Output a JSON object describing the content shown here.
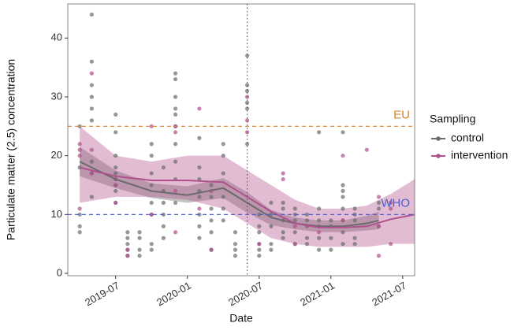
{
  "chart_data": {
    "type": "scatter",
    "x_label": "Date",
    "y_label": "Particulate matter (2.5) concentration",
    "legend_title": "Sampling",
    "xlim": [
      "2019-03",
      "2021-08"
    ],
    "xticks": [
      "2019-07",
      "2020-01",
      "2020-07",
      "2021-01",
      "2021-07"
    ],
    "ylim": [
      -0.4,
      45.8
    ],
    "yticks": [
      0,
      10,
      20,
      30,
      40
    ],
    "vline": "2020-06",
    "hlines": [
      {
        "value": 25,
        "label": "EU",
        "color": "#d9822b"
      },
      {
        "value": 10,
        "label": "WHO",
        "color": "#4f5fc8"
      }
    ],
    "series": [
      {
        "name": "control",
        "color": "#6b6b6b",
        "x": [
          "2019-04",
          "2019-04",
          "2019-04",
          "2019-04",
          "2019-04",
          "2019-05",
          "2019-05",
          "2019-05",
          "2019-05",
          "2019-05",
          "2019-05",
          "2019-05",
          "2019-05",
          "2019-05",
          "2019-07",
          "2019-07",
          "2019-07",
          "2019-07",
          "2019-07",
          "2019-07",
          "2019-07",
          "2019-07",
          "2019-07",
          "2019-08",
          "2019-08",
          "2019-08",
          "2019-08",
          "2019-08",
          "2019-09",
          "2019-09",
          "2019-09",
          "2019-09",
          "2019-10",
          "2019-10",
          "2019-10",
          "2019-10",
          "2019-10",
          "2019-10",
          "2019-10",
          "2019-10",
          "2019-11",
          "2019-11",
          "2019-11",
          "2019-11",
          "2019-11",
          "2019-11",
          "2019-12",
          "2019-12",
          "2019-12",
          "2019-12",
          "2019-12",
          "2019-12",
          "2019-12",
          "2019-12",
          "2019-12",
          "2019-12",
          "2020-02",
          "2020-02",
          "2020-02",
          "2020-02",
          "2020-02",
          "2020-02",
          "2020-02",
          "2020-02",
          "2020-03",
          "2020-03",
          "2020-03",
          "2020-03",
          "2020-03",
          "2020-03",
          "2020-04",
          "2020-04",
          "2020-04",
          "2020-04",
          "2020-04",
          "2020-04",
          "2020-05",
          "2020-05",
          "2020-05",
          "2020-05",
          "2020-06",
          "2020-06",
          "2020-06",
          "2020-06",
          "2020-06",
          "2020-06",
          "2020-07",
          "2020-07",
          "2020-07",
          "2020-07",
          "2020-07",
          "2020-07",
          "2020-08",
          "2020-08",
          "2020-08",
          "2020-08",
          "2020-08",
          "2020-09",
          "2020-09",
          "2020-09",
          "2020-09",
          "2020-09",
          "2020-10",
          "2020-10",
          "2020-10",
          "2020-10",
          "2020-10",
          "2020-11",
          "2020-11",
          "2020-11",
          "2020-11",
          "2020-11",
          "2020-12",
          "2020-12",
          "2020-12",
          "2020-12",
          "2020-12",
          "2020-12",
          "2021-01",
          "2021-01",
          "2021-01",
          "2021-01",
          "2021-02",
          "2021-02",
          "2021-02",
          "2021-02",
          "2021-02",
          "2021-02",
          "2021-02",
          "2021-02",
          "2021-03",
          "2021-03",
          "2021-03",
          "2021-03",
          "2021-03",
          "2021-05",
          "2021-05",
          "2021-05"
        ],
        "values": [
          25,
          18,
          10,
          8,
          7,
          44,
          36,
          32,
          30,
          28,
          26,
          19,
          17,
          13,
          27,
          24,
          20,
          18,
          17,
          16,
          15,
          14,
          12,
          7,
          6,
          5,
          4,
          3,
          7,
          6,
          4,
          3,
          22,
          20,
          17,
          15,
          12,
          10,
          5,
          4,
          18,
          14,
          12,
          10,
          8,
          6,
          34,
          33,
          30,
          28,
          27,
          25,
          22,
          19,
          16,
          12,
          23,
          18,
          16,
          14,
          13,
          10,
          8,
          6,
          15,
          13,
          11,
          9,
          7,
          4,
          22,
          20,
          17,
          13,
          11,
          9,
          7,
          5,
          4,
          3,
          37,
          32,
          31,
          29,
          28,
          22,
          10,
          8,
          7,
          5,
          4,
          3,
          12,
          10,
          8,
          5,
          4,
          12,
          11,
          9,
          7,
          6,
          11,
          10,
          9,
          7,
          5,
          10,
          9,
          8,
          6,
          5,
          24,
          11,
          9,
          8,
          6,
          4,
          9,
          8,
          6,
          4,
          24,
          15,
          14,
          13,
          11,
          9,
          7,
          5,
          11,
          10,
          9,
          6,
          5,
          12,
          11,
          8
        ],
        "smooth": {
          "x": [
            "2019-04",
            "2019-07",
            "2019-10",
            "2020-01",
            "2020-04",
            "2020-06",
            "2020-08",
            "2020-10",
            "2020-12",
            "2021-02",
            "2021-04",
            "2021-05"
          ],
          "values": [
            19,
            16,
            14,
            13.3,
            14.5,
            12,
            9.5,
            8.5,
            8,
            8,
            8.5,
            9
          ],
          "lower": [
            16.5,
            14.5,
            12.8,
            12,
            12.8,
            10.3,
            8.2,
            7.5,
            7,
            7,
            7.3,
            7.5
          ],
          "upper": [
            21.5,
            17.5,
            15.3,
            14.8,
            16.2,
            13.8,
            10.8,
            9.5,
            9,
            9,
            9.8,
            10.5
          ]
        }
      },
      {
        "name": "intervention",
        "color": "#b0508c",
        "x": [
          "2019-04",
          "2019-04",
          "2019-04",
          "2019-04",
          "2019-05",
          "2019-05",
          "2019-05",
          "2019-07",
          "2019-07",
          "2019-07",
          "2019-08",
          "2019-08",
          "2019-10",
          "2019-10",
          "2019-12",
          "2019-12",
          "2019-12",
          "2019-12",
          "2020-02",
          "2020-02",
          "2020-03",
          "2020-03",
          "2020-06",
          "2020-06",
          "2020-06",
          "2020-07",
          "2020-09",
          "2020-09",
          "2020-10",
          "2020-10",
          "2020-12",
          "2021-02",
          "2021-02",
          "2021-04",
          "2021-05",
          "2021-05",
          "2021-05",
          "2021-06",
          "2021-06",
          "2021-06"
        ],
        "values": [
          22,
          21,
          20,
          11,
          34,
          21,
          17,
          16,
          15,
          12,
          4,
          3,
          25,
          10,
          25,
          24,
          14,
          7,
          28,
          11,
          14,
          4,
          30,
          26,
          24,
          5,
          17,
          16,
          8,
          5,
          7,
          20,
          9,
          21,
          13,
          8,
          3,
          12,
          11,
          5
        ],
        "smooth": {
          "x": [
            "2019-04",
            "2019-07",
            "2019-10",
            "2020-01",
            "2020-04",
            "2020-06",
            "2020-08",
            "2020-10",
            "2020-12",
            "2021-02",
            "2021-04",
            "2021-06",
            "2021-08"
          ],
          "values": [
            18,
            16.5,
            15.8,
            15.8,
            15.5,
            13,
            10.5,
            8.5,
            7.8,
            7.8,
            8,
            9.2,
            10
          ],
          "lower": [
            12,
            13,
            13,
            12.5,
            11,
            8.5,
            6,
            5,
            4.5,
            4.5,
            4.5,
            5,
            5
          ],
          "upper": [
            25,
            20,
            19,
            20,
            20,
            17.5,
            15,
            12.5,
            11,
            11,
            11.5,
            13.5,
            16
          ]
        }
      }
    ]
  }
}
